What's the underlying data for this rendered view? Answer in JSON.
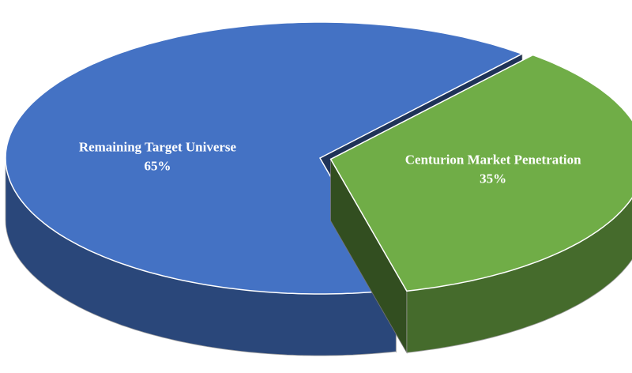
{
  "chart_data": {
    "type": "pie3d",
    "categories": [
      "Remaining Target Universe",
      "Centurion Market Penetration"
    ],
    "values": [
      65,
      35
    ],
    "value_labels": [
      "65%",
      "35%"
    ],
    "colors": [
      "#4472c4",
      "#70ad47"
    ],
    "exploded": [
      false,
      true
    ]
  }
}
